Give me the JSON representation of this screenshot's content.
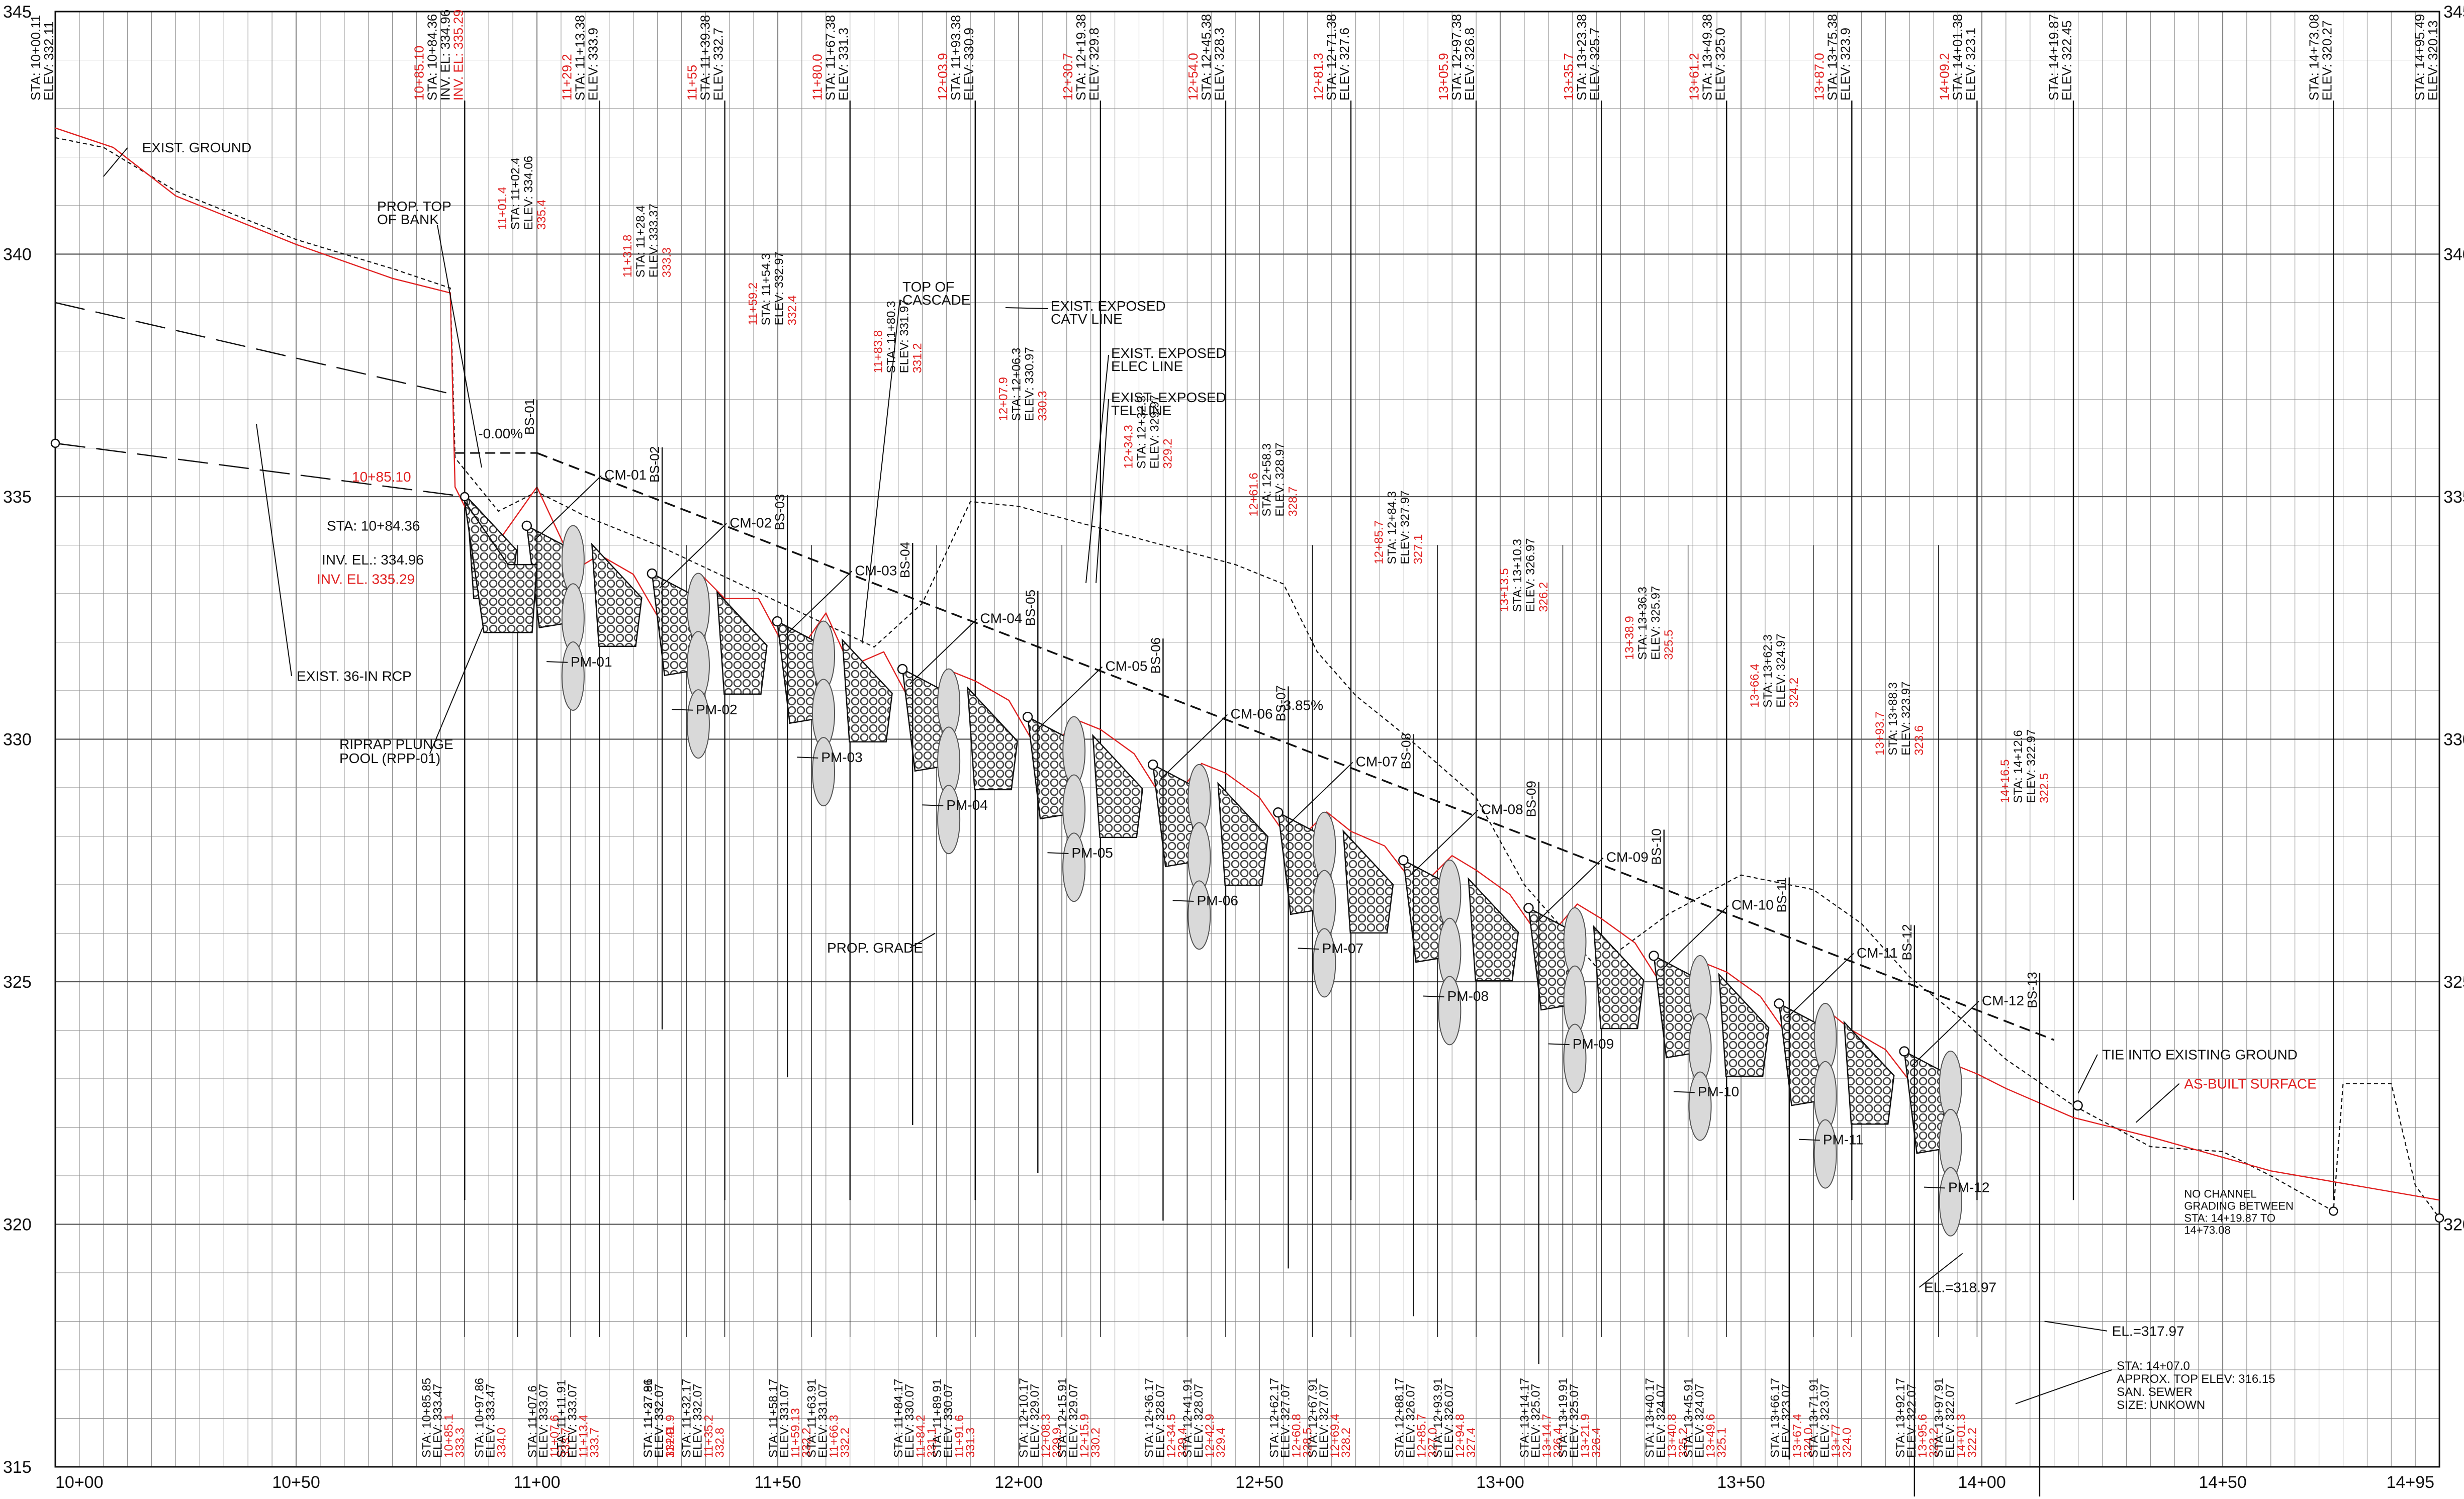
{
  "colors": {
    "ink": "#111111",
    "grid": "#8a8a8a",
    "asbuilt": "#e02020",
    "rock": "#444444",
    "drop": "#d9d9d9"
  },
  "axes": {
    "x_ticks": [
      "10+00",
      "10+50",
      "11+00",
      "11+50",
      "12+00",
      "12+50",
      "13+00",
      "13+50",
      "14+00",
      "14+50",
      "14+95"
    ],
    "y_left_ticks": [
      "315",
      "320",
      "325",
      "330",
      "335",
      "340",
      "345"
    ],
    "y_right_ticks": [
      "320",
      "325",
      "330",
      "335",
      "340",
      "345"
    ],
    "x_range_ft": [
      1000,
      1495
    ],
    "y_range_elev": [
      315,
      345
    ]
  },
  "top_station_labels": [
    {
      "sta": 1000,
      "text": [
        "STA: 10+00.11",
        "ELEV: 332.11"
      ],
      "red": false
    },
    {
      "sta": 1085,
      "text": [
        "10+85.10",
        "STA: 10+84.36",
        "INV. EL: 334.96",
        "INV. EL: 335.29"
      ],
      "red": true
    },
    {
      "sta": 1113,
      "text": [
        "11+29.2",
        "STA: 11+13.38",
        "ELEV: 333.9"
      ],
      "red": true
    },
    {
      "sta": 1139,
      "text": [
        "11+55",
        "STA: 11+39.38",
        "ELEV: 332.7"
      ],
      "red": true
    },
    {
      "sta": 1165,
      "text": [
        "11+80.0",
        "STA: 11+67.38",
        "ELEV: 331.3"
      ],
      "red": true
    },
    {
      "sta": 1191,
      "text": [
        "12+03.9",
        "STA: 11+93.38",
        "ELEV: 330.9"
      ],
      "red": true
    },
    {
      "sta": 1217,
      "text": [
        "12+30.7",
        "STA: 12+19.38",
        "ELEV: 329.8"
      ],
      "red": true
    },
    {
      "sta": 1243,
      "text": [
        "12+54.0",
        "STA: 12+45.38",
        "ELEV: 328.3"
      ],
      "red": true
    },
    {
      "sta": 1269,
      "text": [
        "12+81.3",
        "STA: 12+71.38",
        "ELEV: 327.6"
      ],
      "red": true
    },
    {
      "sta": 1295,
      "text": [
        "13+05.9",
        "STA: 12+97.38",
        "ELEV: 326.8"
      ],
      "red": true
    },
    {
      "sta": 1321,
      "text": [
        "13+35.7",
        "STA: 13+23.38",
        "ELEV: 325.7"
      ],
      "red": true
    },
    {
      "sta": 1347,
      "text": [
        "13+61.2",
        "STA: 13+49.38",
        "ELEV: 325.0"
      ],
      "red": true
    },
    {
      "sta": 1373,
      "text": [
        "13+87.0",
        "STA: 13+75.38",
        "ELEV: 323.9"
      ],
      "red": true
    },
    {
      "sta": 1399,
      "text": [
        "14+09.2",
        "STA: 14+01.38",
        "ELEV: 323.1"
      ],
      "red": true
    },
    {
      "sta": 1419,
      "text": [
        "STA: 14+19.87",
        "ELEV: 322.45"
      ],
      "red": false
    },
    {
      "sta": 1473,
      "text": [
        "STA: 14+73.08",
        "ELEV: 320.27"
      ],
      "red": false
    },
    {
      "sta": 1495,
      "text": [
        "STA: 14+95.49",
        "ELEV: 320.13"
      ],
      "red": false
    }
  ],
  "mid_station_labels": [
    {
      "sta": 1102,
      "text": [
        "11+01.4",
        "STA: 11+02.4",
        "ELEV: 334.06",
        "335.4"
      ]
    },
    {
      "sta": 1128,
      "text": [
        "11+31.8",
        "STA: 11+28.4",
        "ELEV: 333.37",
        "333.3"
      ]
    },
    {
      "sta": 1154,
      "text": [
        "11+59.2",
        "STA: 11+54.3",
        "ELEV: 332.97",
        "332.4"
      ]
    },
    {
      "sta": 1180,
      "text": [
        "11+83.8",
        "STA: 11+80.3",
        "ELEV: 331.97",
        "331.2"
      ]
    },
    {
      "sta": 1206,
      "text": [
        "12+07.9",
        "STA: 12+06.3",
        "ELEV: 330.97",
        "330.3"
      ]
    },
    {
      "sta": 1232,
      "text": [
        "12+34.3",
        "STA: 12+32.3",
        "ELEV: 329.97",
        "329.2"
      ]
    },
    {
      "sta": 1258,
      "text": [
        "12+61.6",
        "STA: 12+58.3",
        "ELEV: 328.97",
        "328.7"
      ]
    },
    {
      "sta": 1284,
      "text": [
        "12+85.7",
        "STA: 12+84.3",
        "ELEV: 327.97",
        "327.1"
      ]
    },
    {
      "sta": 1310,
      "text": [
        "13+13.5",
        "STA: 13+10.3",
        "ELEV: 326.97",
        "326.2"
      ]
    },
    {
      "sta": 1336,
      "text": [
        "13+38.9",
        "STA: 13+36.3",
        "ELEV: 325.97",
        "325.5"
      ]
    },
    {
      "sta": 1362,
      "text": [
        "13+66.4",
        "STA: 13+62.3",
        "ELEV: 324.97",
        "324.2"
      ]
    },
    {
      "sta": 1388,
      "text": [
        "13+93.7",
        "STA: 13+88.3",
        "ELEV: 323.97",
        "323.6"
      ]
    },
    {
      "sta": 1414,
      "text": [
        "14+16.5",
        "STA: 14+12.6",
        "ELEV: 322.97",
        "322.5"
      ]
    }
  ],
  "bottom_station_labels": [
    {
      "sta": 1085,
      "text": [
        "STA: 10+85.85",
        "ELEV: 333.47",
        "10+85.1",
        "333.3"
      ]
    },
    {
      "sta": 1096,
      "text": [
        "STA: 10+97.86",
        "ELEV: 333.47",
        "334.0"
      ]
    },
    {
      "sta": 1107,
      "text": [
        "STA: 11+07.6",
        "ELEV: 333.07",
        "11+07.6",
        "333.7"
      ]
    },
    {
      "sta": 1113,
      "text": [
        "STA: 11+11.91",
        "ELEV: 333.07",
        "11+13.4",
        "333.7"
      ]
    },
    {
      "sta": 1131,
      "text": [
        "STA: 11+27.86",
        "ELEV: 332.07",
        "332.9"
      ]
    },
    {
      "sta": 1139,
      "text": [
        "STA: 11+32.17",
        "ELEV: 332.07",
        "11+35.2",
        "332.8"
      ]
    },
    {
      "sta": 1131,
      "text": [
        "STA: 11+37.91",
        "ELEV: 332.07",
        "11+41.9"
      ]
    },
    {
      "sta": 1157,
      "text": [
        "STA: 11+58.17",
        "ELEV: 331.07",
        "11+59.13",
        "332.2"
      ]
    },
    {
      "sta": 1165,
      "text": [
        "STA: 11+63.91",
        "ELEV: 331.07",
        "11+66.3",
        "332.2"
      ]
    },
    {
      "sta": 1183,
      "text": [
        "STA: 11+84.17",
        "ELEV: 330.07",
        "11+84.2",
        "331.1"
      ]
    },
    {
      "sta": 1191,
      "text": [
        "STA: 11+89.91",
        "ELEV: 330.07",
        "11+91.6",
        "331.3"
      ]
    },
    {
      "sta": 1209,
      "text": [
        "STA: 12+10.17",
        "ELEV: 329.07",
        "12+08.3",
        "329.9"
      ]
    },
    {
      "sta": 1217,
      "text": [
        "STA: 12+15.91",
        "ELEV: 329.07",
        "12+15.9",
        "330.2"
      ]
    },
    {
      "sta": 1235,
      "text": [
        "STA: 12+36.17",
        "ELEV: 328.07",
        "12+34.5",
        "329.4"
      ]
    },
    {
      "sta": 1243,
      "text": [
        "STA: 12+41.91",
        "ELEV: 328.07",
        "12+42.9",
        "329.4"
      ]
    },
    {
      "sta": 1261,
      "text": [
        "STA: 12+62.17",
        "ELEV: 327.07",
        "12+60.8",
        "328.5"
      ]
    },
    {
      "sta": 1269,
      "text": [
        "STA: 12+67.91",
        "ELEV: 327.07",
        "12+69.4",
        "328.2"
      ]
    },
    {
      "sta": 1287,
      "text": [
        "STA: 12+88.17",
        "ELEV: 326.07",
        "12+85.7",
        "327.0"
      ]
    },
    {
      "sta": 1295,
      "text": [
        "STA: 12+93.91",
        "ELEV: 326.07",
        "12+94.8",
        "327.4"
      ]
    },
    {
      "sta": 1313,
      "text": [
        "STA: 13+14.17",
        "ELEV: 325.07",
        "13+14.7",
        "326.4"
      ]
    },
    {
      "sta": 1321,
      "text": [
        "STA: 13+19.91",
        "ELEV: 325.07",
        "13+21.9",
        "326.4"
      ]
    },
    {
      "sta": 1339,
      "text": [
        "STA: 13+40.17",
        "ELEV: 324.07",
        "13+40.8",
        "325.2"
      ]
    },
    {
      "sta": 1347,
      "text": [
        "STA: 13+45.91",
        "ELEV: 324.07",
        "13+49.6",
        "325.1"
      ]
    },
    {
      "sta": 1365,
      "text": [
        "STA: 13+66.17",
        "ELEV: 323.07",
        "13+67.4",
        "324.0"
      ]
    },
    {
      "sta": 1373,
      "text": [
        "STA: 13+71.91",
        "ELEV: 323.07",
        "13+77",
        "324.0"
      ]
    },
    {
      "sta": 1391,
      "text": [
        "STA: 13+92.17",
        "ELEV: 322.07",
        "13+95.6",
        "323.2"
      ]
    },
    {
      "sta": 1399,
      "text": [
        "STA: 13+97.91",
        "ELEV: 322.07",
        "14+01.3",
        "322.2"
      ]
    }
  ],
  "structures": {
    "cascades": [
      "CM-01",
      "CM-02",
      "CM-03",
      "CM-04",
      "CM-05",
      "CM-06",
      "CM-07",
      "CM-08",
      "CM-09",
      "CM-10",
      "CM-11",
      "CM-12"
    ],
    "pools": [
      "PM-01",
      "PM-02",
      "PM-03",
      "PM-04",
      "PM-05",
      "PM-06",
      "PM-07",
      "PM-08",
      "PM-09",
      "PM-10",
      "PM-11",
      "PM-12"
    ],
    "borings": [
      "BS-01",
      "BS-02",
      "BS-03",
      "BS-04",
      "BS-05",
      "BS-06",
      "BS-07",
      "BS-08",
      "BS-09",
      "BS-10",
      "BS-11",
      "BS-12",
      "BS-13"
    ]
  },
  "callouts": {
    "exist_ground": "EXIST. GROUND",
    "prop_top_of_bank": [
      "PROP. TOP",
      "OF BANK"
    ],
    "top_of_cascade": [
      "TOP OF",
      "CASCADE"
    ],
    "catv": [
      "EXIST. EXPOSED",
      "CATV LINE"
    ],
    "elec": [
      "EXIST. EXPOSED",
      "ELEC LINE"
    ],
    "tel": [
      "EXIST. EXPOSED",
      "TEL LINE"
    ],
    "slope_flat": "-0.00%",
    "slope_main": "-3.85%",
    "culvert_red": "10+85.10",
    "culvert_sta": "STA: 10+84.36",
    "culvert_inv": "INV. EL.: 334.96",
    "culvert_inv_red": "INV. EL. 335.29",
    "rcp": "EXIST. 36-IN RCP",
    "riprap": [
      "RIPRAP PLUNGE",
      "POOL (RPP-01)"
    ],
    "prop_grade": "PROP. GRADE",
    "tie_in": "TIE INTO EXISTING GROUND",
    "as_built": "AS-BUILT SURFACE",
    "no_channel": [
      "NO CHANNEL",
      "GRADING BETWEEN",
      "STA: 14+19.87 TO",
      "14+73.08"
    ],
    "el_318": "EL.=318.97",
    "el_317": "EL.=317.97",
    "sewer": [
      "STA: 14+07.0",
      "APPROX. TOP ELEV: 316.15",
      "SAN. SEWER",
      "SIZE: UNKOWN"
    ]
  },
  "profiles": {
    "exist_ground": [
      [
        1000,
        342.4
      ],
      [
        1010,
        342.2
      ],
      [
        1025,
        341.3
      ],
      [
        1050,
        340.3
      ],
      [
        1070,
        339.7
      ],
      [
        1082,
        339.3
      ],
      [
        1083,
        335.8
      ],
      [
        1092,
        334.7
      ],
      [
        1100,
        335.1
      ],
      [
        1110,
        334.6
      ],
      [
        1125,
        334.0
      ],
      [
        1140,
        333.3
      ],
      [
        1155,
        332.6
      ],
      [
        1170,
        331.9
      ],
      [
        1180,
        332.8
      ],
      [
        1190,
        334.9
      ],
      [
        1200,
        334.8
      ],
      [
        1215,
        334.4
      ],
      [
        1230,
        334.0
      ],
      [
        1245,
        333.6
      ],
      [
        1255,
        333.2
      ],
      [
        1262,
        331.8
      ],
      [
        1270,
        330.9
      ],
      [
        1280,
        330.1
      ],
      [
        1295,
        328.8
      ],
      [
        1305,
        327.0
      ],
      [
        1320,
        325.3
      ],
      [
        1335,
        326.4
      ],
      [
        1350,
        327.2
      ],
      [
        1365,
        326.9
      ],
      [
        1375,
        326.2
      ],
      [
        1385,
        325.1
      ],
      [
        1395,
        324.3
      ],
      [
        1405,
        323.4
      ],
      [
        1419,
        322.45
      ],
      [
        1435,
        321.6
      ],
      [
        1450,
        321.5
      ],
      [
        1460,
        321.0
      ],
      [
        1473,
        320.27
      ],
      [
        1475,
        322.9
      ],
      [
        1485,
        322.9
      ],
      [
        1490,
        320.8
      ],
      [
        1495,
        320.13
      ]
    ],
    "as_built": [
      [
        1000,
        342.6
      ],
      [
        1012,
        342.2
      ],
      [
        1025,
        341.2
      ],
      [
        1050,
        340.2
      ],
      [
        1070,
        339.5
      ],
      [
        1082,
        339.2
      ],
      [
        1083,
        335.2
      ],
      [
        1090,
        333.8
      ],
      [
        1100,
        335.2
      ],
      [
        1108,
        333.5
      ],
      [
        1113,
        333.8
      ],
      [
        1120,
        333.4
      ],
      [
        1127,
        332.2
      ],
      [
        1134,
        333.4
      ],
      [
        1139,
        332.9
      ],
      [
        1146,
        332.9
      ],
      [
        1153,
        331.6
      ],
      [
        1160,
        332.6
      ],
      [
        1165,
        331.5
      ],
      [
        1172,
        331.8
      ],
      [
        1179,
        330.5
      ],
      [
        1186,
        331.4
      ],
      [
        1191,
        331.2
      ],
      [
        1198,
        330.8
      ],
      [
        1205,
        329.6
      ],
      [
        1212,
        330.4
      ],
      [
        1217,
        330.2
      ],
      [
        1224,
        329.7
      ],
      [
        1231,
        328.6
      ],
      [
        1238,
        329.5
      ],
      [
        1243,
        329.3
      ],
      [
        1250,
        328.8
      ],
      [
        1257,
        327.8
      ],
      [
        1264,
        328.5
      ],
      [
        1269,
        328.1
      ],
      [
        1276,
        327.8
      ],
      [
        1283,
        326.9
      ],
      [
        1290,
        327.6
      ],
      [
        1295,
        327.3
      ],
      [
        1302,
        326.8
      ],
      [
        1309,
        325.8
      ],
      [
        1316,
        326.6
      ],
      [
        1321,
        326.3
      ],
      [
        1328,
        325.8
      ],
      [
        1335,
        324.7
      ],
      [
        1342,
        325.4
      ],
      [
        1347,
        325.2
      ],
      [
        1354,
        324.7
      ],
      [
        1361,
        323.7
      ],
      [
        1368,
        324.4
      ],
      [
        1373,
        324.0
      ],
      [
        1380,
        323.6
      ],
      [
        1387,
        322.7
      ],
      [
        1394,
        323.3
      ],
      [
        1399,
        323.1
      ],
      [
        1405,
        322.8
      ],
      [
        1412,
        322.5
      ],
      [
        1419,
        322.2
      ],
      [
        1435,
        321.8
      ],
      [
        1460,
        321.1
      ],
      [
        1495,
        320.5
      ]
    ]
  }
}
